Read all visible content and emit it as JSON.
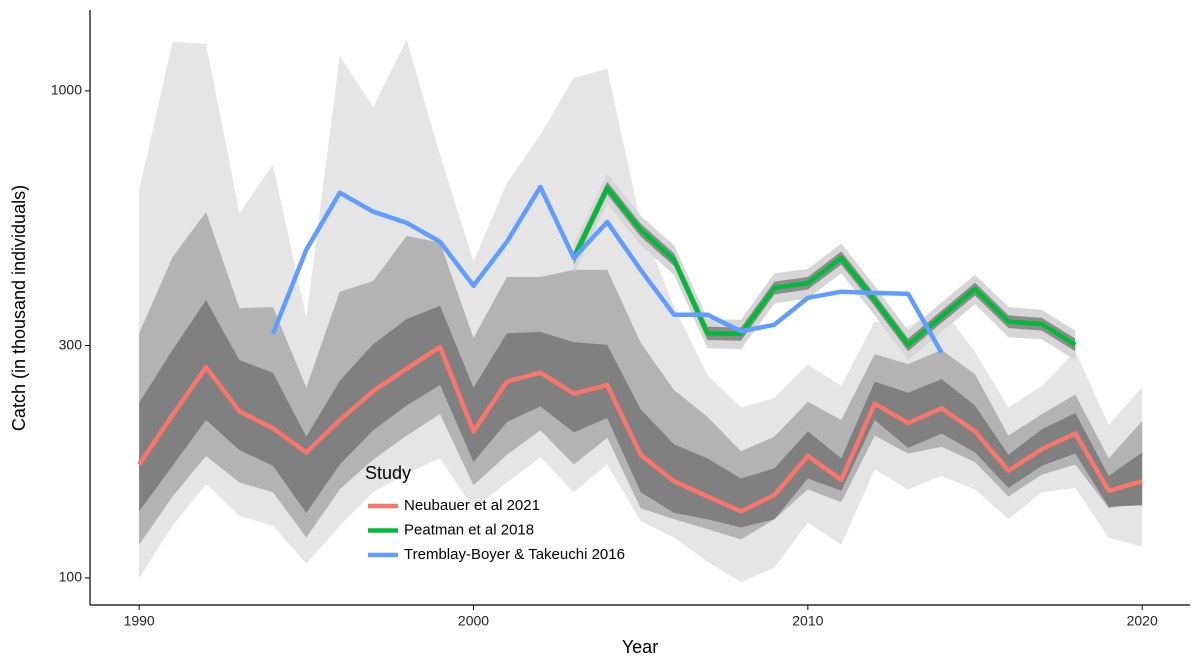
{
  "chart_data": {
    "type": "ribbon_line",
    "x_label": "Year",
    "y_label": "Catch (in thousand individuals)",
    "xlim": [
      1988.53,
      2021.43
    ],
    "ylim": [
      88,
      1466
    ],
    "log_y": true,
    "xticks": [
      1990,
      2000,
      2010,
      2020
    ],
    "yticks": [
      100,
      300,
      1000
    ],
    "legend_title": "Study",
    "legend_position": "center",
    "series": [
      {
        "name": "Neubauer et al 2021",
        "color": "#F8766D",
        "x": [
          1990,
          1991,
          1992,
          1993,
          1994,
          1995,
          1996,
          1997,
          1998,
          1999,
          2000,
          2001,
          2002,
          2003,
          2004,
          2005,
          2006,
          2007,
          2008,
          2009,
          2010,
          2011,
          2012,
          2013,
          2014,
          2015,
          2016,
          2017,
          2018,
          2019,
          2020
        ],
        "values": [
          171,
          216,
          271,
          220,
          203,
          181,
          211,
          242,
          269,
          298,
          200,
          253,
          264,
          239,
          249,
          179,
          158,
          147,
          137,
          148,
          178,
          159,
          228,
          208,
          223,
          200,
          166,
          184,
          198,
          151,
          158
        ],
        "bands": [
          {
            "color": "#e5e5e5",
            "upper": [
              626,
              1261,
              1250,
              561,
              705,
              342,
              1180,
              927,
              1273,
              739,
              446,
              647,
              812,
              1063,
              1110,
              536,
              360,
              261,
              224,
              234,
              274,
              248,
              336,
              328,
              360,
              291,
              224,
              248,
              292,
              206,
              247
            ],
            "lower": [
              100,
              128,
              156,
              134,
              128,
              107,
              128,
              150,
              164,
              176,
              139,
              157,
              177,
              150,
              171,
              131,
              121,
              108,
              98,
              105,
              130,
              117,
              167,
              152,
              162,
              152,
              132,
              150,
              153,
              121,
              116
            ]
          },
          {
            "color": "#b3b3b3",
            "upper": [
              318,
              456,
              564,
              358,
              360,
              246,
              387,
              407,
              504,
              488,
              311,
              415,
              415,
              429,
              429,
              304,
              243,
              214,
              182,
              195,
              230,
              211,
              288,
              275,
              294,
              262,
              196,
              217,
              238,
              176,
              210
            ],
            "lower": [
              117,
              147,
              178,
              157,
              150,
              121,
              152,
              175,
              196,
              217,
              155,
              179,
              201,
              171,
              194,
              139,
              132,
              126,
              120,
              132,
              152,
              143,
              196,
              180,
              186,
              173,
              147,
              163,
              171,
              139,
              143
            ]
          },
          {
            "color": "#808080",
            "upper": [
              229,
              294,
              372,
              280,
              264,
              195,
              254,
              302,
              340,
              362,
              246,
              318,
              320,
              305,
              301,
              222,
              188,
              176,
              160,
              168,
              200,
              176,
              253,
              240,
              256,
              226,
              179,
              202,
              218,
              162,
              181
            ],
            "lower": [
              137,
              170,
              211,
              183,
              170,
              136,
              171,
              201,
              226,
              249,
              173,
              209,
              225,
              199,
              213,
              150,
              136,
              132,
              127,
              132,
              160,
              151,
              211,
              185,
              198,
              181,
              153,
              170,
              180,
              140,
              141
            ]
          }
        ]
      },
      {
        "name": "Peatman et al 2018",
        "color": "#00BA38",
        "x": [
          2003,
          2004,
          2005,
          2006,
          2007,
          2008,
          2009,
          2010,
          2011,
          2012,
          2013,
          2014,
          2015,
          2016,
          2017,
          2018
        ],
        "values": [
          454,
          632,
          518,
          450,
          318,
          317,
          394,
          403,
          454,
          372,
          301,
          344,
          392,
          336,
          332,
          301
        ],
        "bands": [
          {
            "color": "#d6d6d6",
            "upper": [
              486,
              676,
              554,
              482,
              340,
              339,
              422,
              431,
              486,
              398,
              322,
              368,
              419,
              360,
              355,
              322
            ],
            "lower": [
              422,
              588,
              482,
              419,
              296,
              295,
              366,
              375,
              422,
              346,
              280,
              320,
              365,
              312,
              309,
              280
            ]
          },
          {
            "color": "#8c8c8c",
            "upper": [
              468,
              651,
              534,
              464,
              328,
              327,
              406,
              415,
              468,
              383,
              310,
              354,
              404,
              346,
              342,
              310
            ],
            "lower": [
              440,
              613,
              502,
              437,
              308,
              307,
              382,
              391,
              440,
              361,
              292,
              334,
              380,
              326,
              322,
              292
            ]
          }
        ]
      },
      {
        "name": "Tremblay-Boyer & Takeuchi 2016",
        "color": "#619CFF",
        "x": [
          1994,
          1995,
          1996,
          1997,
          1998,
          1999,
          2000,
          2001,
          2002,
          2003,
          2004,
          2005,
          2006,
          2007,
          2008,
          2009,
          2010,
          2011,
          2012,
          2013,
          2014
        ],
        "values": [
          317,
          472,
          618,
          565,
          536,
          490,
          398,
          490,
          635,
          454,
          538,
          429,
          347,
          347,
          321,
          331,
          376,
          387,
          385,
          383,
          290
        ]
      }
    ]
  }
}
